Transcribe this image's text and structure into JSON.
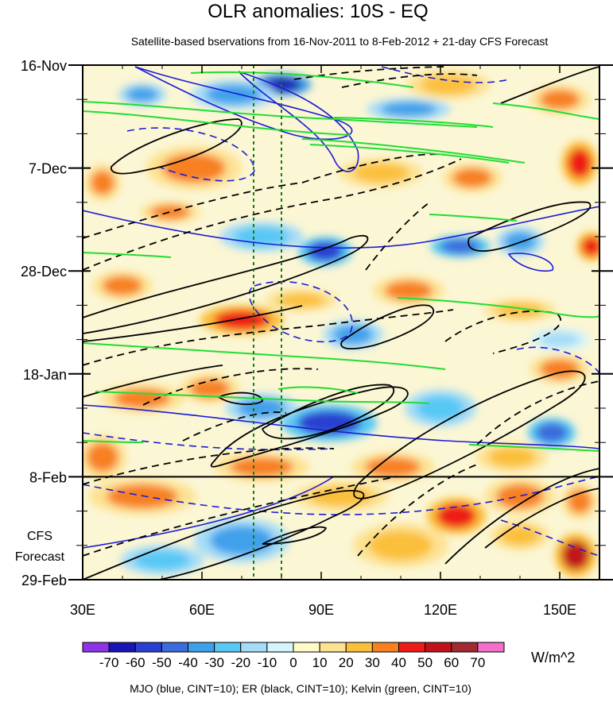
{
  "chart_data": {
    "type": "heatmap",
    "title": "OLR anomalies: 10S - EQ",
    "subtitle": "Satellite-based bservations from 16-Nov-2011 to 8-Feb-2012 + 21-day CFS Forecast",
    "x_axis": {
      "range": [
        30,
        160
      ],
      "ticks": [
        30,
        60,
        90,
        120,
        150
      ],
      "tick_labels": [
        "30E",
        "60E",
        "90E",
        "120E",
        "150E"
      ]
    },
    "y_axis": {
      "range_days": [
        0,
        105
      ],
      "direction": "time increases downward",
      "ticks_days": [
        0,
        21,
        42,
        63,
        84,
        105
      ],
      "tick_labels": [
        "16-Nov",
        "7-Dec",
        "28-Dec",
        "18-Jan",
        "8-Feb",
        "29-Feb"
      ]
    },
    "forecast_boundary_day": 84,
    "forecast_label": [
      "CFS",
      "Forecast"
    ],
    "reference_lines_lon": [
      73,
      80
    ],
    "colorbar": {
      "levels": [
        -70,
        -60,
        -50,
        -40,
        -30,
        -20,
        -10,
        0,
        10,
        20,
        30,
        40,
        50,
        60,
        70
      ],
      "level_labels": [
        "-70",
        "-60",
        "-50",
        "-40",
        "-30",
        "-20",
        "-10",
        "0",
        "10",
        "20",
        "30",
        "40",
        "50",
        "60",
        "70"
      ],
      "colors": [
        "#8c34e6",
        "#1a14b4",
        "#2b3fd0",
        "#3d6bdc",
        "#3fa0ea",
        "#57c8f4",
        "#a4dcf8",
        "#d6f4fb",
        "#fffbc8",
        "#fde292",
        "#fbc03b",
        "#f78020",
        "#ee1c18",
        "#c0121a",
        "#a02a30",
        "#f46fca"
      ],
      "units": "W/m^2"
    },
    "footnote": "MJO (blue, CINT=10); ER (black, CINT=10); Kelvin (green, CINT=10)",
    "field_anomalies": [
      {
        "lon": 80,
        "day": 4,
        "value": -65,
        "w": 10,
        "h": 3
      },
      {
        "lon": 68,
        "day": 6,
        "value": -40,
        "w": 14,
        "h": 4
      },
      {
        "lon": 45,
        "day": 6,
        "value": -35,
        "w": 8,
        "h": 3
      },
      {
        "lon": 112,
        "day": 9,
        "value": -35,
        "w": 14,
        "h": 3
      },
      {
        "lon": 150,
        "day": 7,
        "value": 35,
        "w": 10,
        "h": 4
      },
      {
        "lon": 122,
        "day": 4,
        "value": 20,
        "w": 14,
        "h": 4
      },
      {
        "lon": 58,
        "day": 21,
        "value": 35,
        "w": 16,
        "h": 6
      },
      {
        "lon": 105,
        "day": 22,
        "value": 20,
        "w": 14,
        "h": 4
      },
      {
        "lon": 35,
        "day": 24,
        "value": 35,
        "w": 6,
        "h": 5
      },
      {
        "lon": 128,
        "day": 23,
        "value": 30,
        "w": 10,
        "h": 4
      },
      {
        "lon": 155,
        "day": 20,
        "value": 40,
        "w": 6,
        "h": 6
      },
      {
        "lon": 52,
        "day": 30,
        "value": 30,
        "w": 10,
        "h": 3
      },
      {
        "lon": 91,
        "day": 38,
        "value": -60,
        "w": 9,
        "h": 4
      },
      {
        "lon": 75,
        "day": 35,
        "value": -30,
        "w": 14,
        "h": 4
      },
      {
        "lon": 125,
        "day": 37,
        "value": -45,
        "w": 10,
        "h": 3
      },
      {
        "lon": 140,
        "day": 36,
        "value": -40,
        "w": 8,
        "h": 4
      },
      {
        "lon": 158,
        "day": 37,
        "value": 40,
        "w": 5,
        "h": 4
      },
      {
        "lon": 40,
        "day": 45,
        "value": 35,
        "w": 10,
        "h": 4
      },
      {
        "lon": 70,
        "day": 52,
        "value": 40,
        "w": 14,
        "h": 4
      },
      {
        "lon": 85,
        "day": 48,
        "value": 25,
        "w": 12,
        "h": 3
      },
      {
        "lon": 112,
        "day": 46,
        "value": 30,
        "w": 12,
        "h": 4
      },
      {
        "lon": 140,
        "day": 50,
        "value": 25,
        "w": 12,
        "h": 3
      },
      {
        "lon": 98,
        "day": 55,
        "value": -35,
        "w": 10,
        "h": 4
      },
      {
        "lon": 150,
        "day": 56,
        "value": -20,
        "w": 10,
        "h": 3
      },
      {
        "lon": 150,
        "day": 62,
        "value": 30,
        "w": 10,
        "h": 4
      },
      {
        "lon": 92,
        "day": 73,
        "value": -60,
        "w": 16,
        "h": 5
      },
      {
        "lon": 75,
        "day": 70,
        "value": -40,
        "w": 12,
        "h": 4
      },
      {
        "lon": 45,
        "day": 68,
        "value": 30,
        "w": 14,
        "h": 4
      },
      {
        "lon": 62,
        "day": 66,
        "value": 30,
        "w": 10,
        "h": 4
      },
      {
        "lon": 120,
        "day": 70,
        "value": -30,
        "w": 12,
        "h": 5
      },
      {
        "lon": 148,
        "day": 75,
        "value": -50,
        "w": 8,
        "h": 4
      },
      {
        "lon": 138,
        "day": 80,
        "value": 20,
        "w": 12,
        "h": 4
      },
      {
        "lon": 35,
        "day": 80,
        "value": 35,
        "w": 8,
        "h": 6
      },
      {
        "lon": 75,
        "day": 82,
        "value": 30,
        "w": 16,
        "h": 4
      },
      {
        "lon": 108,
        "day": 82,
        "value": 30,
        "w": 14,
        "h": 4
      },
      {
        "lon": 45,
        "day": 88,
        "value": 35,
        "w": 18,
        "h": 5
      },
      {
        "lon": 95,
        "day": 88,
        "value": 20,
        "w": 16,
        "h": 4
      },
      {
        "lon": 124,
        "day": 92,
        "value": 45,
        "w": 10,
        "h": 5
      },
      {
        "lon": 140,
        "day": 88,
        "value": 30,
        "w": 12,
        "h": 5
      },
      {
        "lon": 155,
        "day": 89,
        "value": 35,
        "w": 6,
        "h": 5
      },
      {
        "lon": 70,
        "day": 97,
        "value": -35,
        "w": 16,
        "h": 6
      },
      {
        "lon": 50,
        "day": 101,
        "value": -25,
        "w": 14,
        "h": 4
      },
      {
        "lon": 110,
        "day": 98,
        "value": 25,
        "w": 16,
        "h": 6
      },
      {
        "lon": 154,
        "day": 100,
        "value": 50,
        "w": 7,
        "h": 6
      },
      {
        "lon": 140,
        "day": 96,
        "value": 20,
        "w": 10,
        "h": 4
      }
    ]
  }
}
